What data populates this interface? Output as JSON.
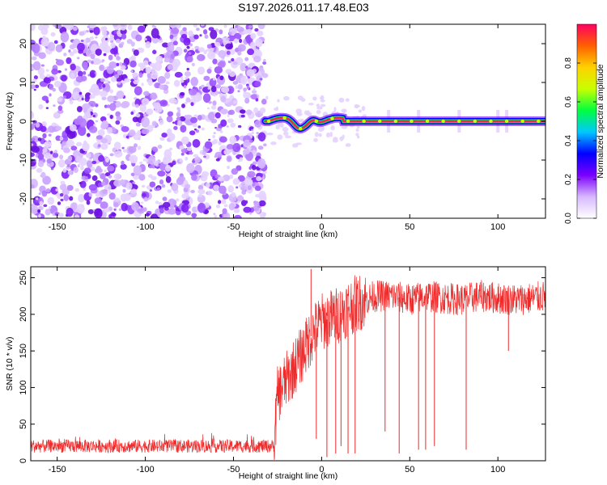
{
  "title": "S197.2026.011.17.48.E03",
  "chart_data": [
    {
      "type": "heatmap",
      "id": "spectrogram",
      "xlabel": "Height of straight line (km)",
      "ylabel": "Frequency (Hz)",
      "xlim": [
        -165,
        127
      ],
      "ylim": [
        -25,
        25
      ],
      "xticks": [
        -150,
        -100,
        -50,
        0,
        50,
        100
      ],
      "yticks": [
        -20,
        -10,
        0,
        10,
        20
      ],
      "noise_region_x": [
        -165,
        -32
      ],
      "signal_start_x": -32,
      "signal_frequency": 0,
      "wiggle_region_x": [
        -32,
        12
      ],
      "colorbar": {
        "label": "Normalized spectral amplitude",
        "range": [
          0,
          1
        ],
        "ticks": [
          0.0,
          0.2,
          0.4,
          0.6,
          0.8
        ],
        "colors": [
          "#ffffff",
          "#d8b8ff",
          "#7a00ff",
          "#0000ff",
          "#00c8ff",
          "#00ff40",
          "#c8ff00",
          "#ffd200",
          "#ff6000",
          "#ff0060"
        ]
      }
    },
    {
      "type": "line",
      "id": "snr",
      "xlabel": "Height of straight line (km)",
      "ylabel": "SNR (10 * v/v)",
      "xlim": [
        -165,
        127
      ],
      "ylim": [
        0,
        265
      ],
      "xticks": [
        -150,
        -100,
        -50,
        0,
        50,
        100
      ],
      "yticks": [
        0,
        50,
        100,
        150,
        200,
        250
      ],
      "color": "#ee2a2a",
      "series": [
        {
          "name": "SNR",
          "x": [
            -165,
            -140,
            -120,
            -100,
            -80,
            -60,
            -40,
            -27,
            -25,
            -20,
            -15,
            -10,
            -5,
            0,
            5,
            10,
            15,
            20,
            25,
            30,
            40,
            50,
            60,
            70,
            80,
            90,
            100,
            110,
            120,
            127
          ],
          "values": [
            20,
            20,
            20,
            20,
            20,
            20,
            20,
            20,
            90,
            110,
            130,
            150,
            175,
            190,
            195,
            200,
            210,
            215,
            220,
            225,
            225,
            220,
            225,
            222,
            220,
            225,
            222,
            220,
            222,
            225
          ]
        }
      ],
      "spikes": [
        {
          "x": -6,
          "y": 262
        },
        {
          "x": -9,
          "y": 190
        },
        {
          "x": -3,
          "y": 30
        },
        {
          "x": 3,
          "y": 5
        },
        {
          "x": 8,
          "y": 10
        },
        {
          "x": 11,
          "y": 20
        },
        {
          "x": 15,
          "y": 10
        },
        {
          "x": 19,
          "y": 10
        },
        {
          "x": 36,
          "y": 40
        },
        {
          "x": 44,
          "y": 10
        },
        {
          "x": 55,
          "y": 15
        },
        {
          "x": 59,
          "y": 15
        },
        {
          "x": 64,
          "y": 20
        },
        {
          "x": 82,
          "y": 15
        },
        {
          "x": 106,
          "y": 150
        }
      ]
    }
  ]
}
